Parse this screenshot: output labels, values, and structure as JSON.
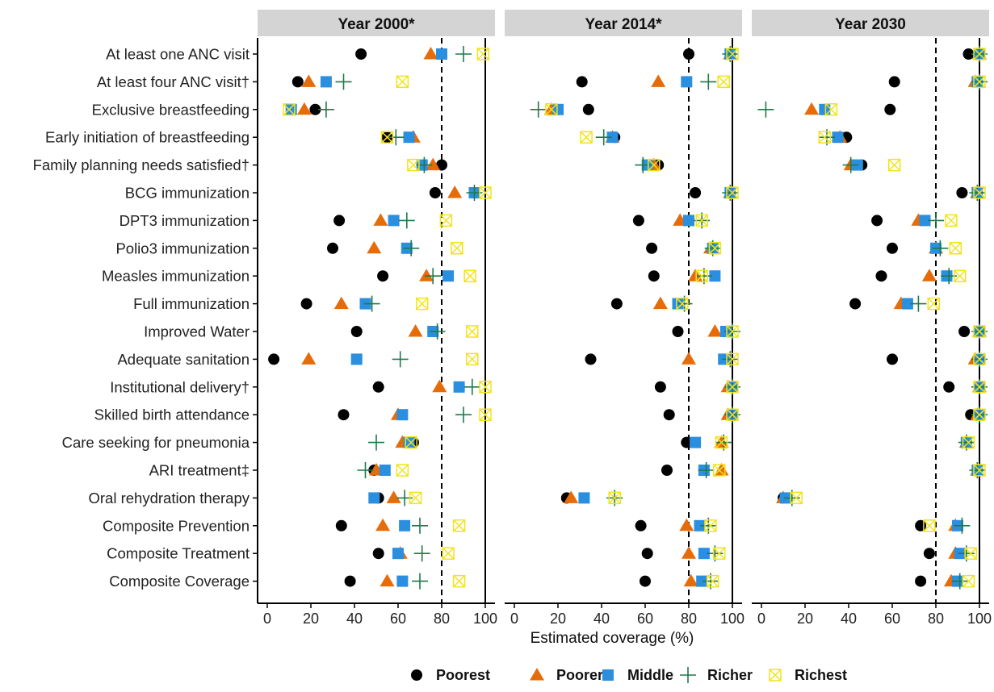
{
  "chart_data": {
    "type": "scatter",
    "xlabel": "Estimated coverage (%)",
    "xlim": [
      0,
      100
    ],
    "x_ticks": [
      "0",
      "20",
      "40",
      "60",
      "80",
      "100"
    ],
    "reference_lines": {
      "dashed": 80,
      "solid": 100
    },
    "legend_position": "bottom",
    "categories": [
      "At least one ANC visit",
      "At least four ANC visit†",
      "Exclusive breastfeeding",
      "Early initiation of breastfeeding",
      "Family planning needs satisfied†",
      "BCG immunization",
      "DPT3 immunization",
      "Polio3 immunization",
      "Measles immunization",
      "Full immunization",
      "Improved Water",
      "Adequate sanitation",
      "Institutional delivery†",
      "Skilled birth attendance",
      "Care seeking for pneumonia",
      "ARI treatment‡",
      "Oral rehydration therapy",
      "Composite Prevention",
      "Composite Treatment",
      "Composite Coverage"
    ],
    "series": [
      {
        "name": "Poorest",
        "shape": "circle",
        "color": "#000000"
      },
      {
        "name": "Poorer",
        "shape": "triangle",
        "color": "#E66C0A"
      },
      {
        "name": "Middle",
        "shape": "square",
        "color": "#2B8FE0"
      },
      {
        "name": "Richer",
        "shape": "plus",
        "color": "#1E7A4A"
      },
      {
        "name": "Richest",
        "shape": "boxx",
        "color": "#F2E31B"
      }
    ],
    "panels": [
      {
        "title": "Year 2000*",
        "values": {
          "Poorest": [
            43,
            14,
            22,
            55,
            80,
            77,
            33,
            30,
            53,
            18,
            41,
            3,
            51,
            35,
            67,
            49,
            51,
            34,
            51,
            38
          ],
          "Poorer": [
            75,
            19,
            17,
            67,
            76,
            86,
            52,
            49,
            73,
            34,
            68,
            19,
            79,
            60,
            62,
            50,
            58,
            53,
            61,
            55
          ],
          "Middle": [
            80,
            27,
            11,
            65,
            71,
            95,
            58,
            64,
            83,
            45,
            76,
            41,
            88,
            62,
            65,
            54,
            49,
            63,
            60,
            62
          ],
          "Richer": [
            90,
            35,
            27,
            59,
            72,
            95,
            64,
            66,
            76,
            48,
            78,
            61,
            94,
            90,
            50,
            45,
            63,
            70,
            71,
            70
          ],
          "Richest": [
            99,
            62,
            10,
            55,
            67,
            100,
            82,
            87,
            93,
            71,
            94,
            94,
            100,
            100,
            66,
            62,
            68,
            88,
            83,
            88
          ]
        }
      },
      {
        "title": "Year 2014*",
        "values": {
          "Poorest": [
            80,
            31,
            34,
            46,
            66,
            83,
            57,
            63,
            64,
            47,
            75,
            35,
            67,
            71,
            79,
            70,
            24,
            58,
            61,
            60
          ],
          "Poorer": [
            99,
            66,
            17,
            45,
            64,
            99,
            76,
            90,
            83,
            67,
            92,
            80,
            98,
            98,
            95,
            95,
            26,
            79,
            80,
            81
          ],
          "Middle": [
            99,
            79,
            20,
            45,
            61,
            99,
            80,
            91,
            92,
            75,
            97,
            96,
            100,
            100,
            83,
            87,
            32,
            85,
            87,
            86
          ],
          "Richer": [
            99,
            89,
            11,
            41,
            59,
            99,
            86,
            91,
            87,
            78,
            100,
            99,
            100,
            100,
            96,
            88,
            46,
            89,
            92,
            90
          ],
          "Richest": [
            100,
            96,
            17,
            33,
            64,
            100,
            86,
            92,
            86,
            77,
            100,
            100,
            100,
            100,
            95,
            94,
            46,
            90,
            94,
            91
          ]
        }
      },
      {
        "title": "Year 2030",
        "values": {
          "Poorest": [
            95,
            61,
            59,
            39,
            46,
            92,
            53,
            60,
            55,
            43,
            93,
            60,
            86,
            96,
            94,
            99,
            10,
            73,
            77,
            73
          ],
          "Poorer": [
            100,
            98,
            23,
            36,
            41,
            99,
            72,
            80,
            77,
            64,
            100,
            98,
            100,
            99,
            94,
            99,
            10,
            89,
            89,
            87
          ],
          "Middle": [
            100,
            99,
            29,
            35,
            44,
            99,
            75,
            80,
            85,
            67,
            100,
            100,
            100,
            100,
            94,
            99,
            11,
            90,
            91,
            90
          ],
          "Richer": [
            100,
            100,
            2,
            30,
            41,
            99,
            80,
            82,
            86,
            72,
            100,
            100,
            100,
            100,
            94,
            99,
            14,
            92,
            94,
            91
          ],
          "Richest": [
            100,
            100,
            32,
            29,
            61,
            100,
            87,
            89,
            91,
            79,
            100,
            100,
            100,
            100,
            95,
            100,
            16,
            77,
            96,
            95
          ]
        }
      }
    ]
  }
}
